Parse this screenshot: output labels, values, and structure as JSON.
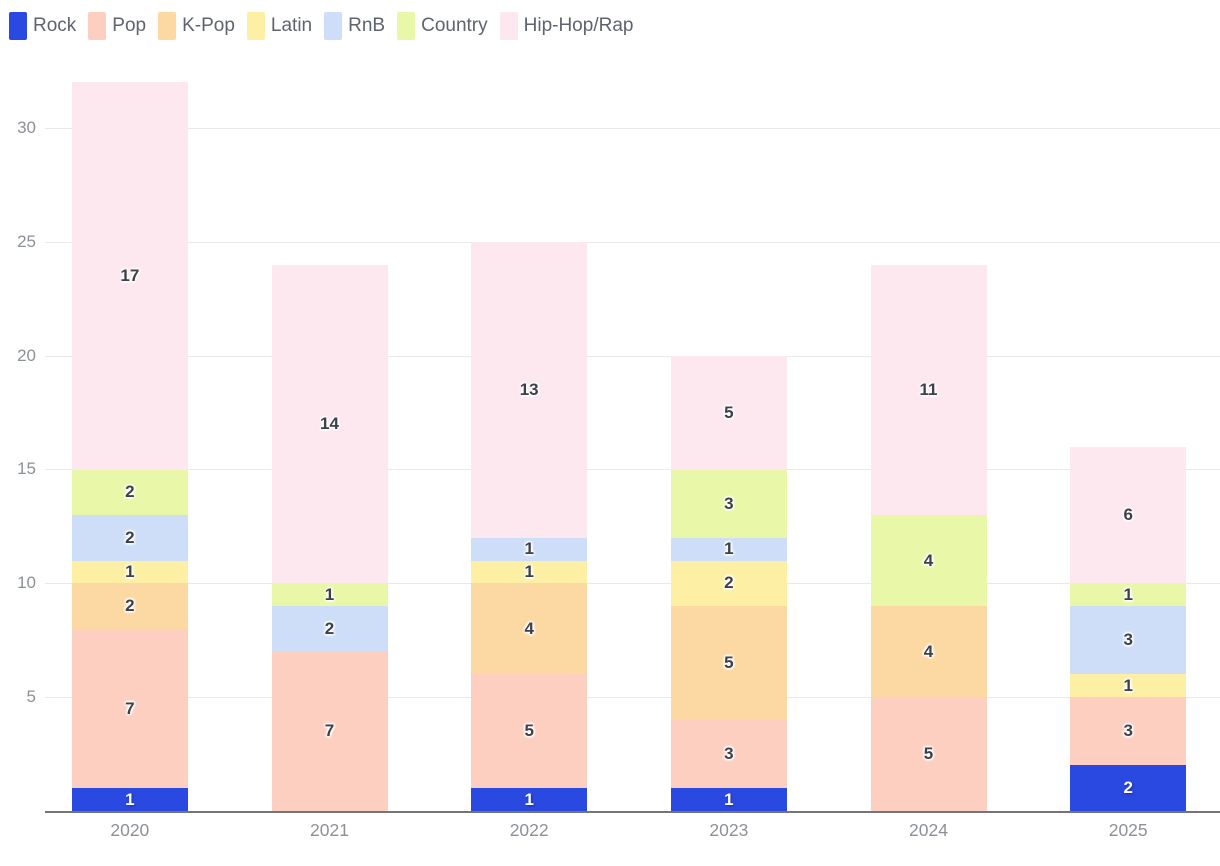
{
  "chart_data": {
    "type": "bar",
    "stacked": true,
    "title": "",
    "xlabel": "",
    "ylabel": "",
    "categories": [
      "2020",
      "2021",
      "2022",
      "2023",
      "2024",
      "2025"
    ],
    "series": [
      {
        "name": "Rock",
        "color": "#2a49e0",
        "values": [
          1,
          0,
          1,
          1,
          0,
          2
        ]
      },
      {
        "name": "Pop",
        "color": "#fccfc1",
        "values": [
          7,
          7,
          5,
          3,
          5,
          3
        ]
      },
      {
        "name": "K-Pop",
        "color": "#fcd9a3",
        "values": [
          2,
          0,
          4,
          5,
          4,
          0
        ]
      },
      {
        "name": "Latin",
        "color": "#fdf0a4",
        "values": [
          1,
          0,
          1,
          2,
          0,
          1
        ]
      },
      {
        "name": "RnB",
        "color": "#cfdef8",
        "values": [
          2,
          2,
          1,
          1,
          0,
          3
        ]
      },
      {
        "name": "Country",
        "color": "#e9f7a8",
        "values": [
          2,
          1,
          0,
          3,
          4,
          1
        ]
      },
      {
        "name": "Hip-Hop/Rap",
        "color": "#fce8ee",
        "values": [
          17,
          14,
          13,
          5,
          11,
          6
        ]
      }
    ],
    "totals": [
      32,
      24,
      25,
      20,
      24,
      16
    ],
    "y_ticks": [
      5,
      10,
      15,
      20,
      25,
      30
    ],
    "ylim": [
      0,
      32
    ],
    "grid": true,
    "bar_value_labels_shown": true,
    "legend_position": "top-left",
    "legend_labels": [
      "Rock",
      "Pop",
      "K-Pop",
      "Latin",
      "RnB",
      "Country",
      "Hip-Hop/Rap"
    ]
  },
  "colors": {
    "background": "#ffffff",
    "grid": "#e9e9eb",
    "axis_line": "#72767b",
    "tick_label": "#8c9198",
    "legend_text": "#5e646f",
    "value_label": "#3c4149",
    "value_label_on_rock": "#ffffff"
  }
}
